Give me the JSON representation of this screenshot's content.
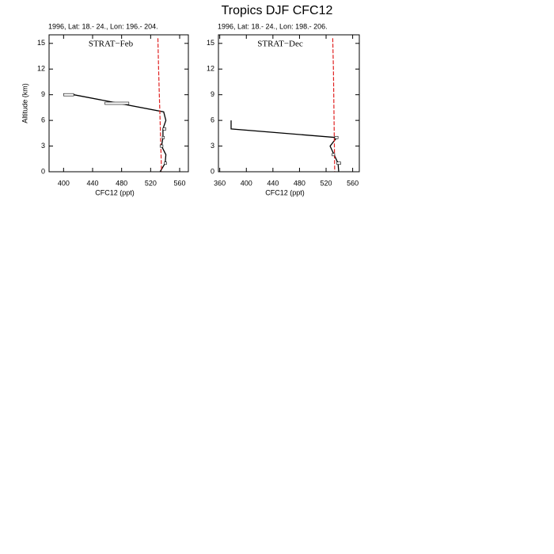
{
  "title": "Tropics DJF CFC12",
  "chart_data": [
    {
      "type": "line",
      "subtitle": "1996, Lat: 18.- 24., Lon: 196.- 204.",
      "label": "STRAT−Feb",
      "xlabel": "CFC12 (ppt)",
      "ylabel": "Altitude (km)",
      "xlim": [
        380,
        572
      ],
      "ylim": [
        0,
        16
      ],
      "xticks": [
        400,
        440,
        480,
        520,
        560
      ],
      "yticks": [
        0,
        3,
        6,
        9,
        12,
        15
      ],
      "series": [
        {
          "color": "#000000",
          "dash": false,
          "values": [
            414,
            538,
            541,
            537,
            537,
            535,
            541,
            540,
            533
          ],
          "altitude": [
            9,
            7,
            6,
            5,
            4,
            3,
            2,
            1,
            0
          ]
        },
        {
          "color": "#e02020",
          "dash": true,
          "values": [
            530,
            531,
            532,
            533,
            534,
            535
          ],
          "altitude": [
            15.6,
            12,
            9,
            6,
            3,
            0
          ]
        }
      ],
      "boxes": [
        {
          "altitude": 9,
          "low": 400,
          "high": 414
        },
        {
          "altitude": 8,
          "low": 457,
          "high": 490
        },
        {
          "altitude": 5,
          "low": 537,
          "high": 541
        },
        {
          "altitude": 4,
          "low": 536,
          "high": 539
        },
        {
          "altitude": 3,
          "low": 533,
          "high": 537
        },
        {
          "altitude": 1,
          "low": 539,
          "high": 542
        }
      ]
    },
    {
      "type": "line",
      "subtitle": "1996, Lat: 18.- 24., Lon: 198.- 206.",
      "label": "STRAT−Dec",
      "xlabel": "CFC12 (ppt)",
      "xlim": [
        358,
        570
      ],
      "ylim": [
        0,
        16
      ],
      "xticks": [
        360,
        400,
        440,
        480,
        520,
        560
      ],
      "yticks": [
        0,
        3,
        6,
        9,
        12,
        15
      ],
      "series": [
        {
          "color": "#000000",
          "dash": false,
          "values": [
            377,
            377,
            536,
            526,
            532,
            538,
            539
          ],
          "altitude": [
            6,
            5,
            4,
            3,
            2,
            1,
            0
          ]
        },
        {
          "color": "#e02020",
          "dash": true,
          "values": [
            530,
            531,
            531.5,
            532,
            532.5,
            533
          ],
          "altitude": [
            15.6,
            12,
            9,
            6,
            3,
            0
          ]
        }
      ],
      "boxes": [
        {
          "altitude": 4,
          "low": 533,
          "high": 538
        },
        {
          "altitude": 2,
          "low": 529,
          "high": 533
        },
        {
          "altitude": 1,
          "low": 536,
          "high": 542
        }
      ]
    }
  ]
}
